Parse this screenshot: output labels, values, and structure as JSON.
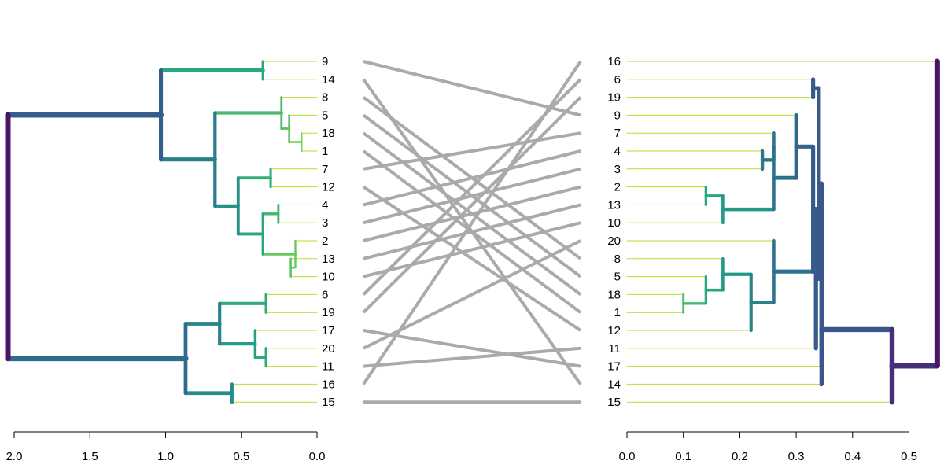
{
  "chart_data": {
    "type": "tanglegram",
    "title": "",
    "left_dendrogram": {
      "leaf_order": [
        "9",
        "14",
        "8",
        "5",
        "18",
        "1",
        "7",
        "12",
        "4",
        "3",
        "2",
        "13",
        "10",
        "6",
        "19",
        "17",
        "20",
        "11",
        "16",
        "15"
      ],
      "axis": {
        "ticks": [
          2.0,
          1.5,
          1.0,
          0.5,
          0.0
        ],
        "tick_labels": [
          "2.0",
          "1.5",
          "1.0",
          "0.5",
          "0.0"
        ],
        "range": [
          2.0,
          0.0
        ]
      },
      "merges": [
        {
          "id": "l_9_14",
          "a": "9",
          "b": "14",
          "height": 0.35
        },
        {
          "id": "l_18_1",
          "a": "18",
          "b": "1",
          "height": 0.1
        },
        {
          "id": "l_5_18_1",
          "a": "5",
          "b": "l_18_1",
          "height": 0.18
        },
        {
          "id": "l_8_5",
          "a": "8",
          "b": "l_5_18_1",
          "height": 0.23
        },
        {
          "id": "l_7_12",
          "a": "7",
          "b": "12",
          "height": 0.3
        },
        {
          "id": "l_4_3",
          "a": "4",
          "b": "3",
          "height": 0.25
        },
        {
          "id": "l_13_10",
          "a": "13",
          "b": "10",
          "height": 0.17
        },
        {
          "id": "l_2_13",
          "a": "2",
          "b": "l_13_10",
          "height": 0.14
        },
        {
          "id": "l_43_2",
          "a": "l_4_3",
          "b": "l_2_13",
          "height": 0.35
        },
        {
          "id": "l_712_43",
          "a": "l_7_12",
          "b": "l_43_2",
          "height": 0.51
        },
        {
          "id": "l_8g_7g",
          "a": "l_8_5",
          "b": "l_712_43",
          "height": 0.66
        },
        {
          "id": "l_top1",
          "a": "l_9_14",
          "b": "l_8g_7g",
          "height": 1.01
        },
        {
          "id": "l_6_19",
          "a": "6",
          "b": "19",
          "height": 0.33
        },
        {
          "id": "l_20_11",
          "a": "20",
          "b": "11",
          "height": 0.33
        },
        {
          "id": "l_17_20",
          "a": "17",
          "b": "l_20_11",
          "height": 0.4
        },
        {
          "id": "l_6g_17g",
          "a": "l_6_19",
          "b": "l_17_20",
          "height": 0.63
        },
        {
          "id": "l_16_15",
          "a": "16",
          "b": "15",
          "height": 0.55
        },
        {
          "id": "l_bot",
          "a": "l_6g_17g",
          "b": "l_16_15",
          "height": 0.85
        },
        {
          "id": "l_root",
          "a": "l_top1",
          "b": "l_bot",
          "height": 2.0
        }
      ]
    },
    "right_dendrogram": {
      "leaf_order": [
        "16",
        "6",
        "19",
        "9",
        "7",
        "4",
        "3",
        "2",
        "13",
        "10",
        "20",
        "8",
        "5",
        "18",
        "1",
        "12",
        "11",
        "17",
        "14",
        "15"
      ],
      "axis": {
        "ticks": [
          0.0,
          0.1,
          0.2,
          0.3,
          0.4,
          0.5
        ],
        "tick_labels": [
          "0.0",
          "0.1",
          "0.2",
          "0.3",
          "0.4",
          "0.5"
        ],
        "range": [
          0.0,
          0.55
        ]
      },
      "merges": [
        {
          "id": "r_6_19",
          "a": "6",
          "b": "19",
          "height": 0.33
        },
        {
          "id": "r_4_3",
          "a": "4",
          "b": "3",
          "height": 0.24
        },
        {
          "id": "r_7_43",
          "a": "7",
          "b": "r_4_3",
          "height": 0.26
        },
        {
          "id": "r_2_13",
          "a": "2",
          "b": "13",
          "height": 0.14
        },
        {
          "id": "r_2g_10",
          "a": "r_2_13",
          "b": "10",
          "height": 0.17
        },
        {
          "id": "r_7g_2g",
          "a": "r_7_43",
          "b": "r_2g_10",
          "height": 0.26
        },
        {
          "id": "r_9_7g",
          "a": "9",
          "b": "r_7g_2g",
          "height": 0.3
        },
        {
          "id": "r_18_1",
          "a": "18",
          "b": "1",
          "height": 0.1
        },
        {
          "id": "r_5_18g",
          "a": "5",
          "b": "r_18_1",
          "height": 0.14
        },
        {
          "id": "r_8_5g",
          "a": "8",
          "b": "r_5_18g",
          "height": 0.17
        },
        {
          "id": "r_8g_12",
          "a": "r_8_5g",
          "b": "12",
          "height": 0.22
        },
        {
          "id": "r_20_8g",
          "a": "20",
          "b": "r_8g_12",
          "height": 0.26
        },
        {
          "id": "r_9g_20g",
          "a": "r_9_7g",
          "b": "r_20_8g",
          "height": 0.33
        },
        {
          "id": "r_11",
          "a": "r_9g_20g",
          "b": "11",
          "height": 0.335
        },
        {
          "id": "r_6g_rest",
          "a": "r_6_19",
          "b": "r_11",
          "height": 0.34
        },
        {
          "id": "r_17",
          "a": "r_6g_rest",
          "b": "17",
          "height": 0.345
        },
        {
          "id": "r_14",
          "a": "r_17",
          "b": "14",
          "height": 0.345
        },
        {
          "id": "r_15",
          "a": "r_14",
          "b": "15",
          "height": 0.47
        },
        {
          "id": "r_root",
          "a": "16",
          "b": "r_15",
          "height": 0.55
        }
      ]
    },
    "connectors": [
      [
        "9",
        "9"
      ],
      [
        "14",
        "14"
      ],
      [
        "8",
        "8"
      ],
      [
        "5",
        "5"
      ],
      [
        "18",
        "18"
      ],
      [
        "1",
        "1"
      ],
      [
        "7",
        "7"
      ],
      [
        "12",
        "12"
      ],
      [
        "4",
        "4"
      ],
      [
        "3",
        "3"
      ],
      [
        "2",
        "2"
      ],
      [
        "13",
        "13"
      ],
      [
        "10",
        "10"
      ],
      [
        "6",
        "6"
      ],
      [
        "19",
        "19"
      ],
      [
        "17",
        "17"
      ],
      [
        "20",
        "20"
      ],
      [
        "11",
        "11"
      ],
      [
        "16",
        "16"
      ],
      [
        "15",
        "15"
      ]
    ],
    "colors": {
      "connector": "#aaaaaa",
      "leaf_branch": "#b8de29",
      "palette_low": "#73d055",
      "palette_mid": "#20a386",
      "palette_high": "#2d708e",
      "palette_top": "#404788",
      "palette_root": "#481567",
      "axis": "#000000"
    }
  }
}
